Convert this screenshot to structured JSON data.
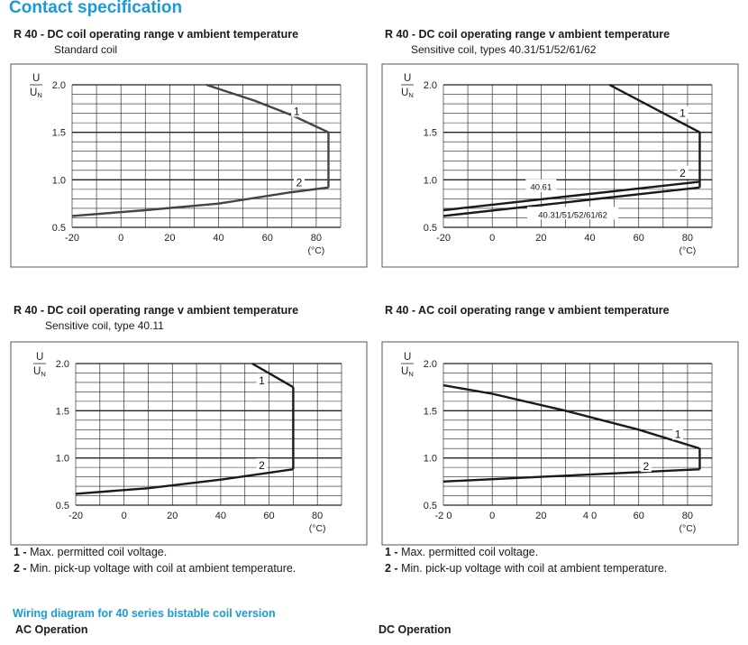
{
  "page": {
    "title": "Contact specification",
    "wiring_title": "Wiring diagram for 40 series bistable coil version",
    "ac_operation": "AC Operation",
    "dc_operation": "DC Operation"
  },
  "legend_notes": {
    "n1_num": "1 -",
    "n1_text": " Max. permitted coil voltage.",
    "n2_num": "2 -",
    "n2_text": " Min. pick-up voltage with coil at ambient temperature."
  },
  "colors": {
    "accent": "#1a9ad6",
    "curve": "#1a1a1a",
    "grid": "#1a1a1a"
  },
  "chart_data": [
    {
      "type": "line",
      "title": "R 40 - DC coil operating range v ambient temperature",
      "subtitle": "Standard coil",
      "ylabel_num": "U",
      "ylabel_den": "UN",
      "xunit": "(°C)",
      "xlim": [
        -20,
        90
      ],
      "ylim": [
        0.5,
        2.0
      ],
      "xticks": [
        "-20",
        "0",
        "20",
        "40",
        "60",
        "80"
      ],
      "yticks": [
        "0.5",
        "1.0",
        "1.5",
        "2.0"
      ],
      "series": [
        {
          "name": "1",
          "x": [
            35,
            55,
            70,
            85
          ],
          "y": [
            2.0,
            1.83,
            1.68,
            1.5
          ]
        },
        {
          "name": "2",
          "x": [
            -20,
            10,
            40,
            70,
            85
          ],
          "y": [
            0.62,
            0.68,
            0.75,
            0.87,
            0.92
          ]
        }
      ],
      "series_labels": [
        {
          "text": "1",
          "x": 72,
          "y": 1.72
        },
        {
          "text": "2",
          "x": 73,
          "y": 0.97
        }
      ],
      "annotations": []
    },
    {
      "type": "line",
      "title": "R 40 - DC coil operating range v ambient temperature",
      "subtitle": "Sensitive coil, types 40.31/51/52/61/62",
      "ylabel_num": "U",
      "ylabel_den": "UN",
      "xunit": "(°C)",
      "xlim": [
        -20,
        90
      ],
      "ylim": [
        0.5,
        2.0
      ],
      "xticks": [
        "-20",
        "0",
        "20",
        "40",
        "60",
        "80"
      ],
      "yticks": [
        "0.5",
        "1.0",
        "1.5",
        "2.0"
      ],
      "series": [
        {
          "name": "1",
          "x": [
            48,
            85
          ],
          "y": [
            2.0,
            1.5
          ]
        },
        {
          "name": "40.61",
          "x": [
            -20,
            85
          ],
          "y": [
            0.68,
            0.98
          ]
        },
        {
          "name": "40.31/51/52/61/62",
          "x": [
            -20,
            85
          ],
          "y": [
            0.62,
            0.92
          ]
        }
      ],
      "series_labels": [
        {
          "text": "1",
          "x": 78,
          "y": 1.7
        },
        {
          "text": "2",
          "x": 78,
          "y": 1.07
        },
        {
          "text": "40.61",
          "x": 20,
          "y": 0.93
        },
        {
          "text": "40.31/51/52/61/62",
          "x": 33,
          "y": 0.64
        }
      ],
      "annotations": []
    },
    {
      "type": "line",
      "title": "R 40 - DC coil operating range v ambient temperature",
      "subtitle": "Sensitive coil, type 40.11",
      "ylabel_num": "U",
      "ylabel_den": "UN",
      "xunit": "(°C)",
      "xlim": [
        -20,
        90
      ],
      "ylim": [
        0.5,
        2.0
      ],
      "xticks": [
        "-20",
        "0",
        "20",
        "40",
        "60",
        "80"
      ],
      "yticks": [
        "0.5",
        "1.0",
        "1.5",
        "2.0"
      ],
      "series": [
        {
          "name": "1",
          "x": [
            53,
            70
          ],
          "y": [
            2.0,
            1.75
          ]
        },
        {
          "name": "2",
          "x": [
            -20,
            10,
            40,
            70
          ],
          "y": [
            0.62,
            0.68,
            0.77,
            0.88
          ]
        }
      ],
      "series_labels": [
        {
          "text": "1",
          "x": 57,
          "y": 1.82
        },
        {
          "text": "2",
          "x": 57,
          "y": 0.92
        }
      ],
      "annotations": []
    },
    {
      "type": "line",
      "title": "R 40 - AC coil operating range v ambient temperature",
      "subtitle": "",
      "ylabel_num": "U",
      "ylabel_den": "UN",
      "xunit": "(°C)",
      "xlim": [
        -20,
        90
      ],
      "ylim": [
        0.5,
        2.0
      ],
      "xticks": [
        "-2 0",
        "0",
        "20",
        "4 0",
        "60",
        "80"
      ],
      "yticks": [
        "0.5",
        "1.0",
        "1.5",
        "2.0"
      ],
      "series": [
        {
          "name": "1",
          "x": [
            -20,
            0,
            30,
            60,
            85
          ],
          "y": [
            1.77,
            1.68,
            1.5,
            1.3,
            1.1
          ]
        },
        {
          "name": "2",
          "x": [
            -20,
            20,
            60,
            85
          ],
          "y": [
            0.75,
            0.8,
            0.85,
            0.88
          ]
        }
      ],
      "series_labels": [
        {
          "text": "1",
          "x": 76,
          "y": 1.25
        },
        {
          "text": "2",
          "x": 63,
          "y": 0.91
        }
      ],
      "annotations": []
    }
  ]
}
